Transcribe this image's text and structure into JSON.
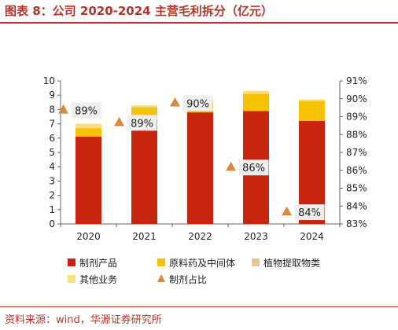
{
  "header": {
    "title": "图表 8：公司 2020-2024 主营毛利拆分（亿元）"
  },
  "footer": {
    "source": "资料来源：wind，华源证券研究所"
  },
  "colors": {
    "series1": "#c8250f",
    "series2": "#f7c200",
    "series3": "#e3c79b",
    "series4": "#f9e07a",
    "line": "#d98840",
    "label_box": "#eeeeee",
    "accent": "#b5342a"
  },
  "chart_data": {
    "type": "bar",
    "stacked": true,
    "categories": [
      "2020",
      "2021",
      "2022",
      "2023",
      "2024"
    ],
    "series": [
      {
        "name": "制剂产品",
        "values": [
          6.1,
          7.3,
          7.8,
          7.9,
          7.2
        ],
        "color": "#c8250f"
      },
      {
        "name": "原料药及中间体",
        "values": [
          0.6,
          0.8,
          0.7,
          1.2,
          1.4
        ],
        "color": "#f7c200"
      },
      {
        "name": "植物提取物类",
        "values": [
          0.0,
          0.1,
          0.1,
          0.0,
          0.0
        ],
        "color": "#e3c79b"
      },
      {
        "name": "其他业务",
        "values": [
          0.3,
          0.1,
          0.2,
          0.2,
          0.1
        ],
        "color": "#f9e07a"
      }
    ],
    "line_series": {
      "name": "制剂占比",
      "values": [
        89.4,
        88.7,
        89.8,
        86.2,
        83.7
      ],
      "labels": [
        "89%",
        "89%",
        "90%",
        "86%",
        "84%"
      ],
      "axis": "right",
      "color": "#d98840"
    },
    "ylim": [
      0,
      10
    ],
    "y_ticks": [
      "0",
      "1",
      "2",
      "3",
      "4",
      "5",
      "6",
      "7",
      "8",
      "9",
      "10"
    ],
    "y2lim": [
      83,
      91
    ],
    "y2_ticks": [
      "83%",
      "84%",
      "85%",
      "86%",
      "87%",
      "88%",
      "89%",
      "90%",
      "91%"
    ],
    "legend_position": "bottom",
    "grid": false
  }
}
